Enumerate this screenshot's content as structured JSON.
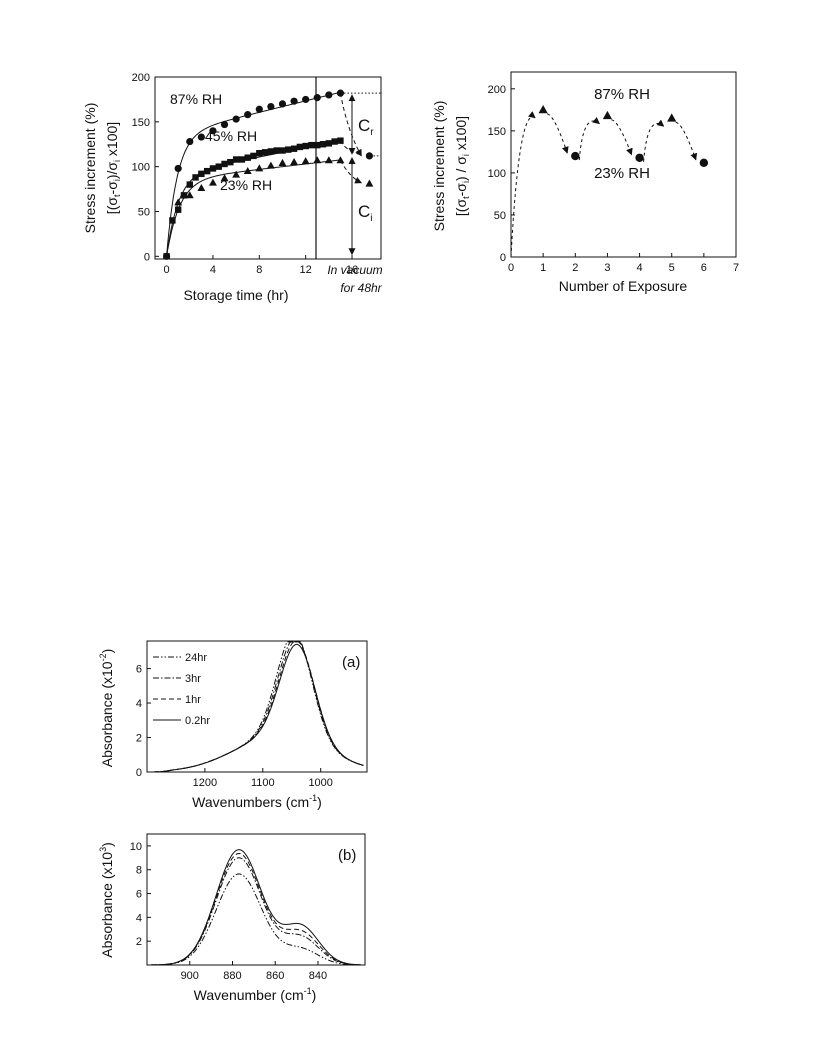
{
  "chart_data": [
    {
      "id": "storage",
      "type": "scatter",
      "xlabel": "Storage time (hr)",
      "ylabel": "Stress increment (%)",
      "ylabel2": "[(σt-σi)/σi x100]",
      "xlim": [
        -1,
        18.5
      ],
      "ylim": [
        -3,
        200
      ],
      "xticks": [
        0,
        4,
        8,
        12,
        16
      ],
      "yticks": [
        0,
        50,
        100,
        150,
        200
      ],
      "series": [
        {
          "name": "87% RH",
          "marker": "circle",
          "x": [
            0,
            1,
            2,
            3,
            4,
            5,
            6,
            7,
            8,
            9,
            10,
            11,
            12,
            13,
            14,
            15
          ],
          "y": [
            0,
            98,
            128,
            133,
            140,
            147,
            153,
            158,
            164,
            167,
            170,
            173,
            175,
            177,
            180,
            182
          ]
        },
        {
          "name": "45% RH",
          "marker": "square",
          "x": [
            0,
            0.5,
            1,
            1.5,
            2,
            2.5,
            3,
            3.5,
            4,
            4.5,
            5,
            5.5,
            6,
            6.5,
            7,
            7.5,
            8,
            8.5,
            9,
            9.5,
            10,
            10.5,
            11,
            11.5,
            12,
            12.5,
            13,
            13.5,
            14,
            14.5,
            15
          ],
          "y": [
            0,
            40,
            52,
            68,
            80,
            88,
            92,
            95,
            98,
            100,
            103,
            105,
            108,
            108,
            110,
            112,
            115,
            116,
            117,
            118,
            118,
            119,
            120,
            122,
            123,
            124,
            124,
            125,
            126,
            128,
            129
          ]
        },
        {
          "name": "23% RH",
          "marker": "triangle",
          "x": [
            0,
            1,
            2,
            3,
            4,
            5,
            6,
            7,
            8,
            9,
            10,
            11,
            12,
            13,
            14,
            15
          ],
          "y": [
            0,
            60,
            68,
            76,
            82,
            87,
            91,
            95,
            98,
            101,
            104,
            105,
            106,
            107,
            107,
            107
          ]
        }
      ],
      "vacuum_points": [
        {
          "marker": "circle",
          "x": 17.5,
          "y": 112
        },
        {
          "marker": "triangle",
          "x": 17.5,
          "y": 81
        }
      ],
      "annotations": {
        "cr_label": "Cr",
        "ci_label": "Ci",
        "vacuum_line1": "In vacuum",
        "vacuum_line2": "for 48hr"
      }
    },
    {
      "id": "exposure",
      "type": "scatter",
      "xlabel": "Number of Exposure",
      "ylabel": "Stress increment (%)",
      "ylabel2": "[(σt-σi) / σi x100]",
      "xlim": [
        0,
        7
      ],
      "ylim": [
        0,
        220
      ],
      "xticks": [
        0,
        1,
        2,
        3,
        4,
        5,
        6,
        7
      ],
      "yticks": [
        0,
        50,
        100,
        150,
        200
      ],
      "points": [
        {
          "x": 1,
          "y": 175,
          "marker": "triangle"
        },
        {
          "x": 2,
          "y": 120,
          "marker": "circle"
        },
        {
          "x": 3,
          "y": 168,
          "marker": "triangle"
        },
        {
          "x": 4,
          "y": 118,
          "marker": "circle"
        },
        {
          "x": 5,
          "y": 165,
          "marker": "triangle"
        },
        {
          "x": 6,
          "y": 112,
          "marker": "circle"
        }
      ],
      "annotations": {
        "top": "87% RH",
        "bottom": "23% RH"
      }
    },
    {
      "id": "ftir_a",
      "type": "line",
      "panel_label": "(a)",
      "xlabel": "Wavenumbers (cm-1)",
      "ylabel": "Absorbance (x10-2)",
      "xlim": [
        1300,
        920
      ],
      "ylim": [
        0,
        7.6
      ],
      "xticks": [
        1200,
        1100,
        1000
      ],
      "yticks": [
        0,
        2,
        4,
        6
      ],
      "series": [
        {
          "name": "24hr",
          "dash": "dashdotdot",
          "peak": 7.35,
          "shift": 5
        },
        {
          "name": "3hr",
          "dash": "dashdot",
          "peak": 7.1,
          "shift": 3
        },
        {
          "name": "1hr",
          "dash": "dash",
          "peak": 6.95,
          "shift": 1
        },
        {
          "name": "0.2hr",
          "dash": "solid",
          "peak": 6.75,
          "shift": 0
        }
      ],
      "peak_center": 1040
    },
    {
      "id": "ftir_b",
      "type": "line",
      "panel_label": "(b)",
      "xlabel": "Wavenumber (cm-1)",
      "ylabel": "Absorbance (x10-3)",
      "xlim": [
        920,
        818
      ],
      "ylim": [
        0,
        11
      ],
      "xticks": [
        900,
        880,
        860,
        840
      ],
      "yticks": [
        2,
        4,
        6,
        8,
        10
      ],
      "series": [
        {
          "name": "0.2hr",
          "dash": "solid",
          "peak": 10.8,
          "shoulder": 3.2
        },
        {
          "name": "1hr",
          "dash": "dash",
          "peak": 10.3,
          "shoulder": 2.7
        },
        {
          "name": "3hr",
          "dash": "dashdot",
          "peak": 9.8,
          "shoulder": 2.3
        },
        {
          "name": "24hr",
          "dash": "dashdotdot",
          "peak": 8.1,
          "shoulder": 1.3
        }
      ],
      "peak_center": 877
    }
  ]
}
